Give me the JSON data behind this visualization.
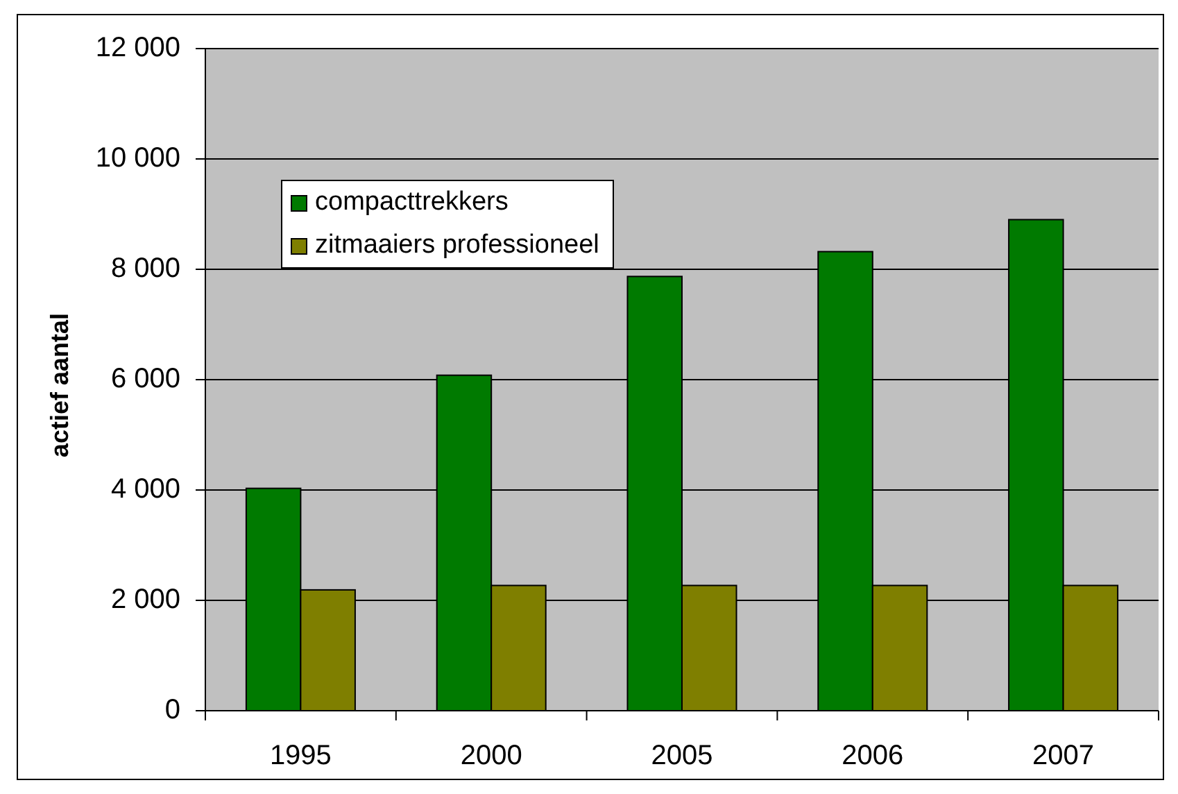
{
  "chart_data": {
    "type": "bar",
    "ylabel": "actief aantal",
    "categories": [
      "1995",
      "2000",
      "2005",
      "2006",
      "2007"
    ],
    "series": [
      {
        "name": "compacttrekkers",
        "color": "#007a00",
        "values": [
          4030,
          6080,
          7870,
          8320,
          8900
        ]
      },
      {
        "name": "zitmaaiers professioneel",
        "color": "#7f7f00",
        "values": [
          2190,
          2270,
          2270,
          2270,
          2270
        ]
      }
    ],
    "ylim": [
      0,
      12000
    ],
    "yticks": [
      0,
      {
        "value": 2000,
        "label": "2 000"
      },
      {
        "value": 4000,
        "label": "4 000"
      },
      {
        "value": 6000,
        "label": "6 000"
      },
      {
        "value": 8000,
        "label": "8 000"
      },
      {
        "value": 10000,
        "label": "10 000"
      },
      {
        "value": 12000,
        "label": "12 000"
      }
    ],
    "grid": "y",
    "legend": "top left"
  }
}
